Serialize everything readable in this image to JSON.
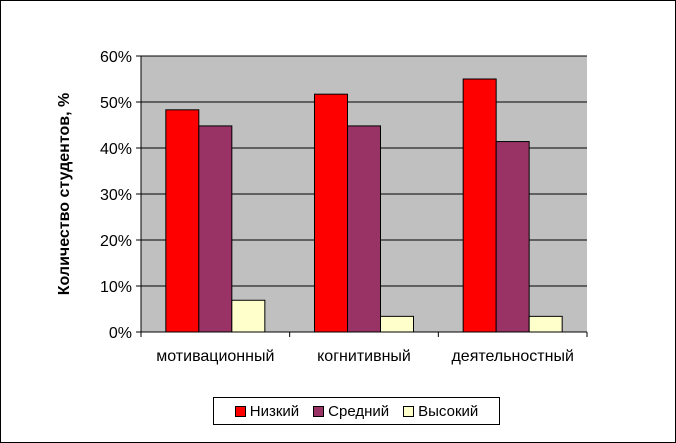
{
  "chart_data": {
    "type": "bar",
    "title": "",
    "xlabel": "",
    "ylabel": "Количество студентов, %",
    "ylim": [
      0,
      60
    ],
    "yticks": [
      "0%",
      "10%",
      "20%",
      "30%",
      "40%",
      "50%",
      "60%"
    ],
    "grid": true,
    "legend_position": "bottom",
    "plot_background": "#C0C0C0",
    "categories": [
      "мотивационный",
      "когнитивный",
      "деятельностный"
    ],
    "series": [
      {
        "name": "Низкий",
        "color": "#FF0000",
        "values": [
          48.3,
          51.7,
          55.0
        ]
      },
      {
        "name": "Средний",
        "color": "#993366",
        "values": [
          44.8,
          44.8,
          41.4
        ]
      },
      {
        "name": "Высокий",
        "color": "#FFFFCC",
        "values": [
          6.9,
          3.4,
          3.4
        ]
      }
    ]
  }
}
